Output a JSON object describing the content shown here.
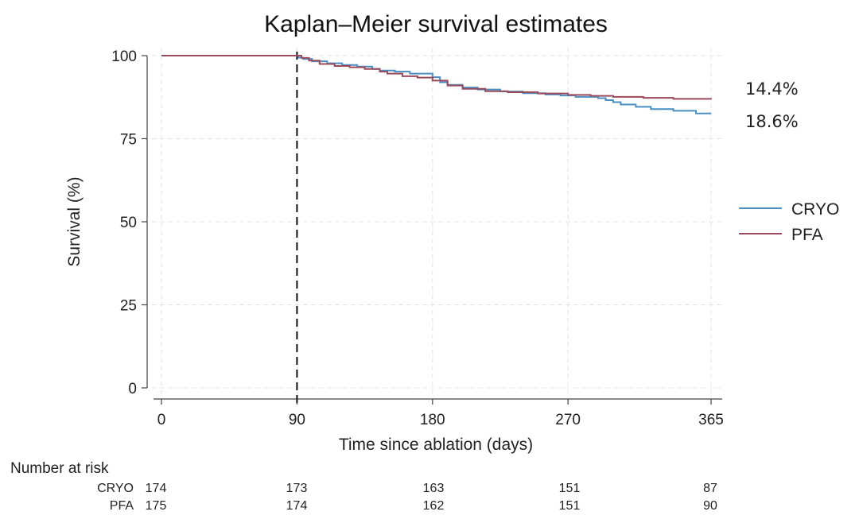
{
  "chart_data": {
    "type": "line",
    "title": "Kaplan–Meier survival estimates",
    "xlabel": "Time since ablation (days)",
    "ylabel": "Survival (%)",
    "xlim": [
      0,
      365
    ],
    "ylim": [
      0,
      100
    ],
    "xticks": [
      0,
      90,
      180,
      270,
      365
    ],
    "yticks": [
      0,
      25,
      50,
      75,
      100
    ],
    "grid": true,
    "legend_position": "right",
    "reference_line": {
      "x": 90,
      "style": "dashed"
    },
    "series": [
      {
        "name": "CRYO",
        "color": "#4a8fc4",
        "x": [
          0,
          90,
          91,
          94,
          100,
          110,
          120,
          130,
          140,
          145,
          155,
          165,
          180,
          185,
          190,
          200,
          210,
          225,
          240,
          255,
          265,
          275,
          290,
          295,
          300,
          305,
          315,
          325,
          340,
          355,
          365
        ],
        "y": [
          100,
          100,
          99.4,
          99.0,
          98.3,
          97.7,
          97.2,
          96.7,
          96.0,
          95.5,
          95.2,
          94.6,
          93.5,
          92.0,
          91.2,
          90.4,
          89.8,
          89.2,
          88.7,
          88.3,
          88.0,
          87.6,
          87.2,
          86.6,
          86.0,
          85.3,
          84.6,
          83.9,
          83.4,
          82.6,
          82.6
        ]
      },
      {
        "name": "PFA",
        "color": "#9a4a5a",
        "x": [
          0,
          90,
          93,
          98,
          105,
          115,
          125,
          135,
          145,
          150,
          160,
          170,
          180,
          190,
          200,
          215,
          230,
          250,
          270,
          285,
          300,
          320,
          340,
          365
        ],
        "y": [
          100,
          100,
          99.3,
          98.5,
          97.5,
          96.9,
          96.5,
          96.0,
          95.2,
          94.6,
          93.8,
          93.4,
          92.5,
          91.0,
          90.0,
          89.3,
          89.0,
          88.6,
          88.2,
          87.9,
          87.6,
          87.3,
          87.0,
          86.9
        ]
      }
    ],
    "annotations": [
      "14.4%",
      "18.6%"
    ],
    "risk_table": {
      "header": "Number at risk",
      "times": [
        0,
        90,
        180,
        270,
        365
      ],
      "rows": [
        {
          "group": "CRYO",
          "values": [
            174,
            173,
            163,
            151,
            87
          ]
        },
        {
          "group": "PFA",
          "values": [
            175,
            174,
            162,
            151,
            90
          ]
        }
      ]
    }
  }
}
